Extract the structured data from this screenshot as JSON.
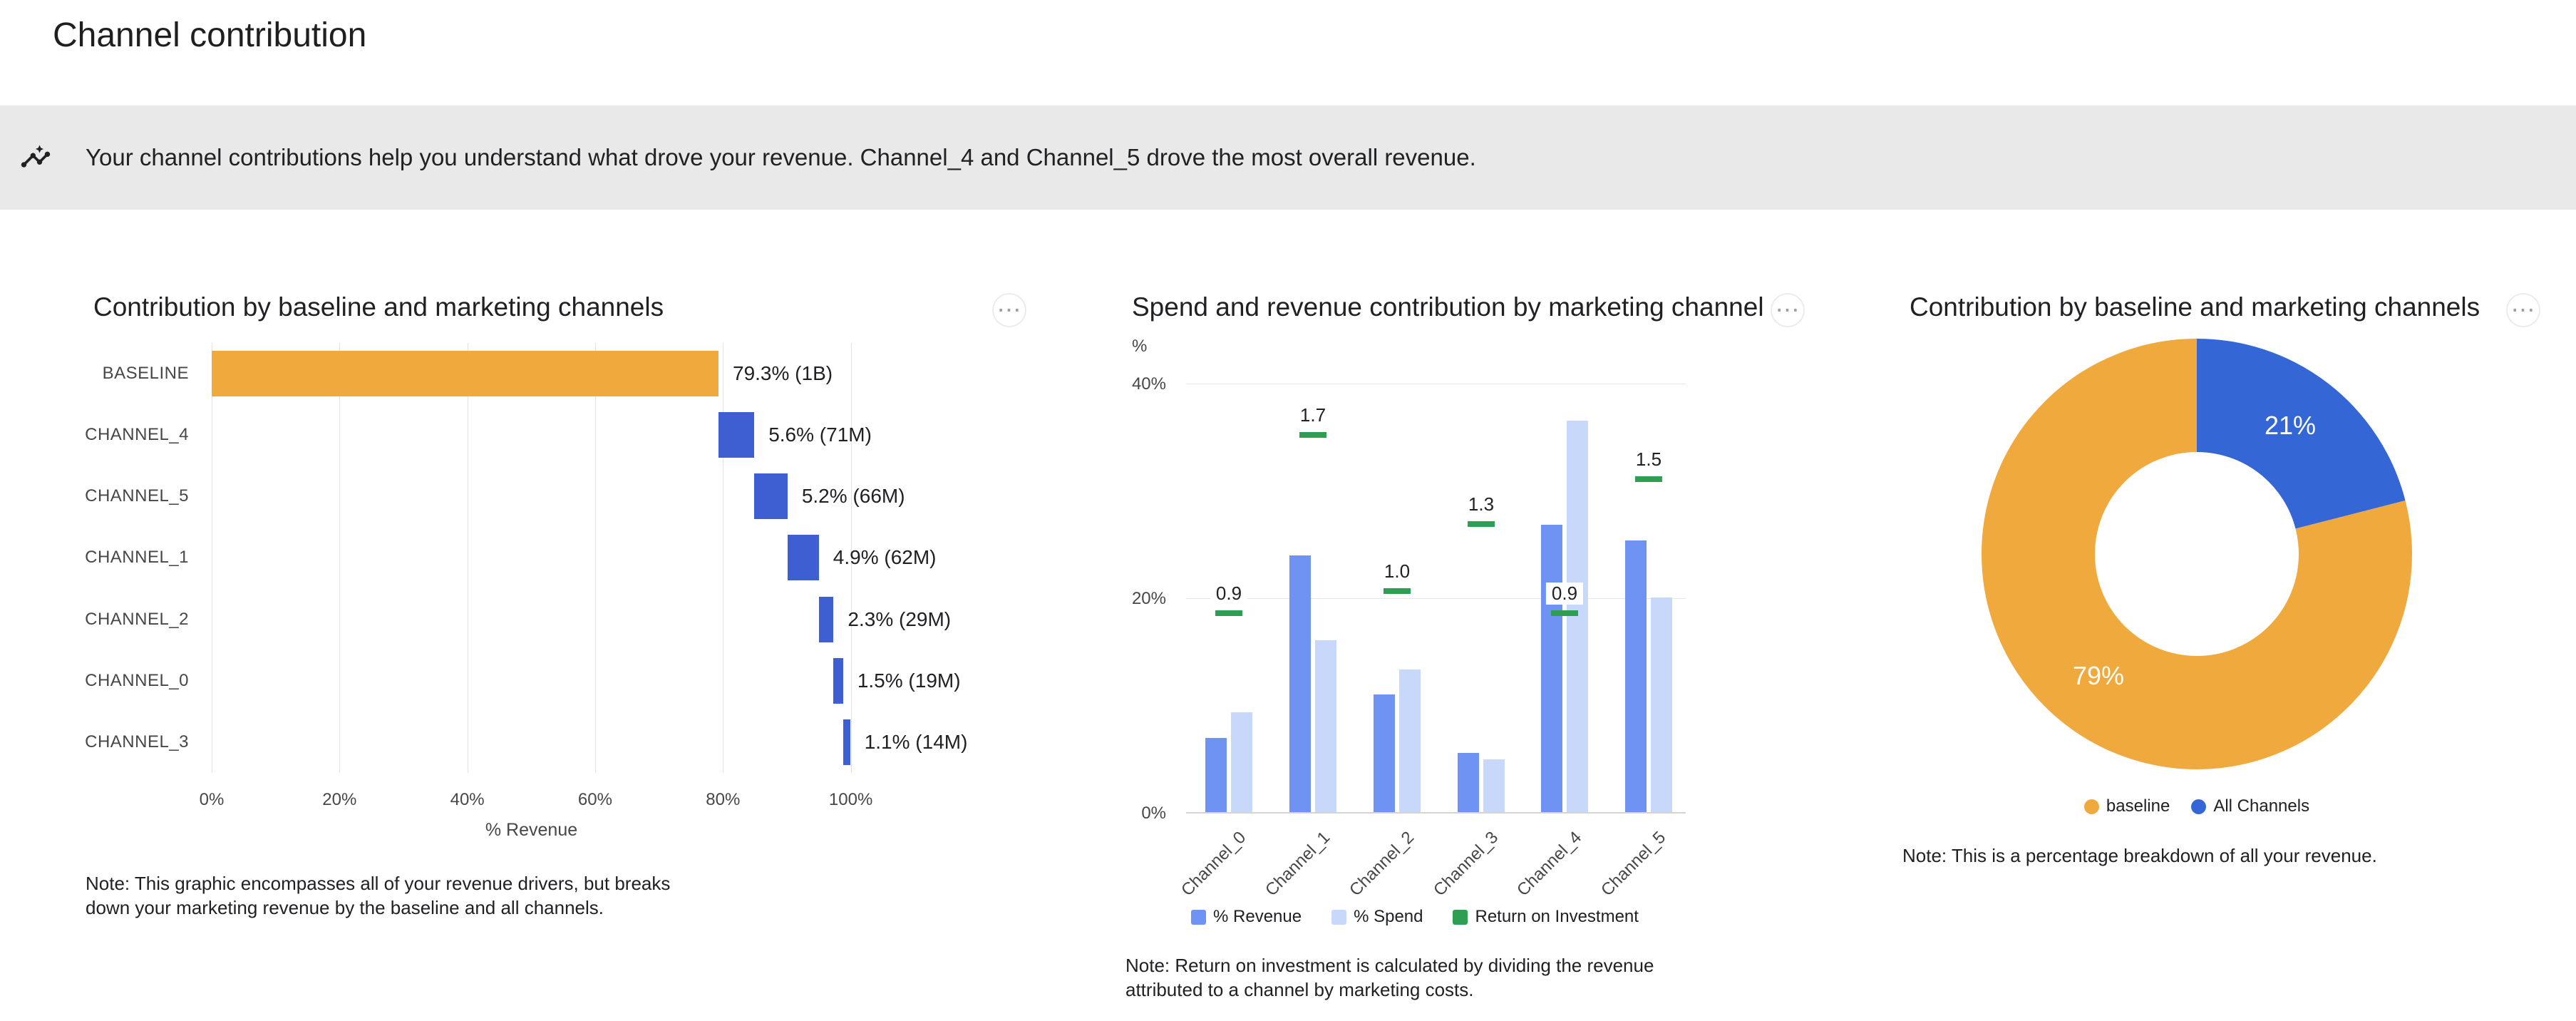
{
  "page": {
    "title": "Channel contribution"
  },
  "banner": {
    "icon": "insights-icon",
    "text": "Your channel contributions help you understand what drove your revenue. Channel_4 and Channel_5 drove the most overall revenue."
  },
  "icons": {
    "banner": "insights-icon",
    "card_menu": "more-options-icon"
  },
  "colors": {
    "baseline_orange": "#F0A93C",
    "channel_blue": "#3E5FD1",
    "donut_blue": "#3566D6",
    "revenue_blue": "#6E93F3",
    "spend_blue": "#C8D8FA",
    "roi_green": "#2E9E53"
  },
  "chart_data": [
    {
      "id": "waterfall",
      "type": "bar",
      "title": "Contribution by baseline and marketing channels",
      "xlabel": "% Revenue",
      "x_ticks": [
        "0%",
        "20%",
        "40%",
        "60%",
        "80%",
        "100%"
      ],
      "xlim": [
        0,
        100
      ],
      "grid": true,
      "note": "Note: This graphic encompasses all of your revenue drivers, but breaks down your marketing revenue by the baseline and all channels.",
      "rows": [
        {
          "label": "BASELINE",
          "start": 0,
          "value": 79.3,
          "display": "79.3% (1B)",
          "series": "baseline"
        },
        {
          "label": "CHANNEL_4",
          "start": 79.3,
          "value": 5.6,
          "display": "5.6% (71M)",
          "series": "channel"
        },
        {
          "label": "CHANNEL_5",
          "start": 84.9,
          "value": 5.2,
          "display": "5.2% (66M)",
          "series": "channel"
        },
        {
          "label": "CHANNEL_1",
          "start": 90.1,
          "value": 4.9,
          "display": "4.9% (62M)",
          "series": "channel"
        },
        {
          "label": "CHANNEL_2",
          "start": 95.0,
          "value": 2.3,
          "display": "2.3% (29M)",
          "series": "channel"
        },
        {
          "label": "CHANNEL_0",
          "start": 97.3,
          "value": 1.5,
          "display": "1.5% (19M)",
          "series": "channel"
        },
        {
          "label": "CHANNEL_3",
          "start": 98.8,
          "value": 1.1,
          "display": "1.1% (14M)",
          "series": "channel"
        }
      ]
    },
    {
      "id": "spend_revenue",
      "type": "bar",
      "title": "Spend and revenue contribution by marketing channel",
      "ylabel": "%",
      "y_ticks": [
        "0%",
        "20%",
        "40%"
      ],
      "y_tick_values": [
        0,
        20,
        40
      ],
      "ylim": [
        0,
        41
      ],
      "grid": true,
      "legend_position": "bottom",
      "note": "Note: Return on investment is calculated by dividing the revenue attributed to a channel by marketing costs.",
      "categories": [
        "Channel_0",
        "Channel_1",
        "Channel_2",
        "Channel_3",
        "Channel_4",
        "Channel_5"
      ],
      "series": [
        {
          "name": "% Revenue",
          "values": [
            6.9,
            23.9,
            11.0,
            5.5,
            26.8,
            25.3
          ]
        },
        {
          "name": "% Spend",
          "values": [
            9.3,
            16.0,
            13.3,
            4.9,
            36.5,
            20.0
          ]
        },
        {
          "name": "Return on Investment",
          "values": [
            0.9,
            1.7,
            1.0,
            1.3,
            0.9,
            1.5
          ]
        }
      ],
      "legend": [
        "% Revenue",
        "% Spend",
        "Return on Investment"
      ]
    },
    {
      "id": "donut",
      "type": "pie",
      "title": "Contribution by baseline and marketing channels",
      "legend_position": "bottom",
      "note": "Note: This is a percentage breakdown of all your revenue.",
      "slices": [
        {
          "label": "All Channels",
          "value": 21,
          "display": "21%"
        },
        {
          "label": "baseline",
          "value": 79,
          "display": "79%"
        }
      ],
      "legend": [
        {
          "label": "baseline",
          "color_key": "baseline_orange"
        },
        {
          "label": "All Channels",
          "color_key": "donut_blue"
        }
      ]
    }
  ]
}
